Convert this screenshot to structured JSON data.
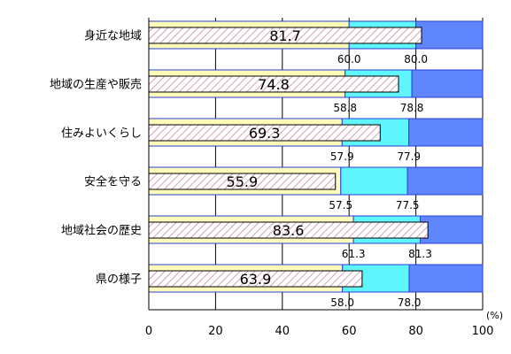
{
  "chart_data": {
    "type": "bar",
    "orientation": "horizontal",
    "categories": [
      "身近な地域",
      "地域の生産や販売",
      "住みよいくらし",
      "安全を守る",
      "地域社会の歴史",
      "県の様子"
    ],
    "series": [
      {
        "values": [
          81.7,
          74.8,
          69.3,
          55.9,
          83.6,
          63.9
        ]
      }
    ],
    "band_lower": [
      60.0,
      58.8,
      57.9,
      57.5,
      61.3,
      58.0
    ],
    "band_upper": [
      80.0,
      78.8,
      77.9,
      77.5,
      81.3,
      78.0
    ],
    "band_lower_labels": [
      "60.0",
      "58.8",
      "57.9",
      "57.5",
      "61.3",
      "58.0"
    ],
    "band_upper_labels": [
      "80.0",
      "78.8",
      "77.9",
      "77.5",
      "81.3",
      "78.0"
    ],
    "value_labels": [
      "81.7",
      "74.8",
      "69.3",
      "55.9",
      "83.6",
      "63.9"
    ],
    "xlim": [
      0,
      100
    ],
    "xticks": [
      0,
      20,
      40,
      60,
      80,
      100
    ],
    "xtick_labels": [
      "0",
      "20",
      "40",
      "60",
      "80",
      "100"
    ],
    "unit": "(%)",
    "grid": true,
    "colors": {
      "band_low": "#fffbb8",
      "band_mid": "#5ef6fc",
      "band_high": "#5f86fc",
      "border": "#2a3fd6",
      "hatch": "#c07a9a",
      "grid": "#000000"
    }
  }
}
